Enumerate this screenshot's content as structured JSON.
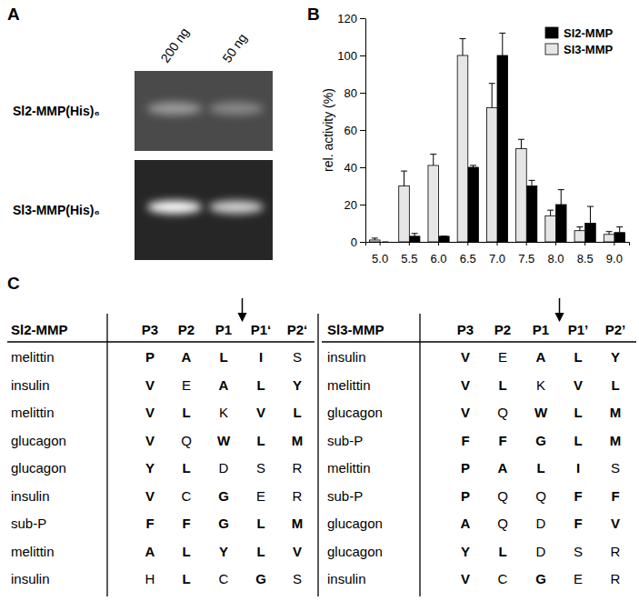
{
  "panel_labels": [
    "A",
    "B",
    "C"
  ],
  "gel": {
    "lanes": [
      "200 ng",
      "50 ng"
    ],
    "rows": [
      {
        "label": "Sl2-MMP(His)₆",
        "band_intensity": [
          0.45,
          0.35
        ]
      },
      {
        "label": "Sl3-MMP(His)₆",
        "band_intensity": [
          1.0,
          0.8
        ]
      }
    ]
  },
  "chart_data": {
    "type": "bar",
    "y_label": "rel. activity (%)",
    "categories": [
      "5.0",
      "5.5",
      "6.0",
      "6.5",
      "7.0",
      "7.5",
      "8.0",
      "8.5",
      "9.0"
    ],
    "series": [
      {
        "name": "Sl2-MMP",
        "color": "#000000",
        "values": [
          0,
          3,
          3,
          40,
          100,
          30,
          20,
          10,
          5
        ],
        "errors": [
          0,
          1.5,
          0,
          1,
          12,
          3,
          8,
          9,
          3
        ]
      },
      {
        "name": "Sl3-MMP",
        "color": "#e6e6e6",
        "values": [
          1,
          30,
          41,
          100,
          72,
          50,
          14,
          6,
          4
        ],
        "errors": [
          1,
          8,
          6,
          9,
          13,
          5,
          3,
          2,
          1.5
        ]
      }
    ],
    "ylim": [
      0,
      120
    ],
    "yticks": [
      0,
      20,
      40,
      60,
      80,
      100,
      120
    ],
    "legend": "top-right"
  },
  "tables": [
    {
      "header": [
        "Sl2-MMP",
        "P3",
        "P2",
        "P1",
        "P1‘",
        "P2‘"
      ],
      "rows": [
        {
          "peptide": "melittin",
          "residues": [
            "P",
            "A",
            "L",
            "I",
            "S"
          ],
          "bold": [
            true,
            true,
            true,
            true,
            false
          ]
        },
        {
          "peptide": "insulin",
          "residues": [
            "V",
            "E",
            "A",
            "L",
            "Y"
          ],
          "bold": [
            true,
            false,
            true,
            true,
            true
          ]
        },
        {
          "peptide": "melittin",
          "residues": [
            "V",
            "L",
            "K",
            "V",
            "L"
          ],
          "bold": [
            true,
            true,
            false,
            true,
            true
          ]
        },
        {
          "peptide": "glucagon",
          "residues": [
            "V",
            "Q",
            "W",
            "L",
            "M"
          ],
          "bold": [
            true,
            false,
            true,
            true,
            true
          ]
        },
        {
          "peptide": "glucagon",
          "residues": [
            "Y",
            "L",
            "D",
            "S",
            "R"
          ],
          "bold": [
            true,
            true,
            false,
            false,
            false
          ]
        },
        {
          "peptide": "insulin",
          "residues": [
            "V",
            "C",
            "G",
            "E",
            "R"
          ],
          "bold": [
            true,
            false,
            true,
            false,
            false
          ]
        },
        {
          "peptide": "sub-P",
          "residues": [
            "F",
            "F",
            "G",
            "L",
            "M"
          ],
          "bold": [
            true,
            true,
            true,
            true,
            true
          ]
        },
        {
          "peptide": "melittin",
          "residues": [
            "A",
            "L",
            "Y",
            "L",
            "V"
          ],
          "bold": [
            true,
            true,
            true,
            true,
            true
          ]
        },
        {
          "peptide": "insulin",
          "residues": [
            "H",
            "L",
            "C",
            "G",
            "S"
          ],
          "bold": [
            false,
            true,
            false,
            true,
            false
          ]
        }
      ]
    },
    {
      "header": [
        "Sl3-MMP",
        "P3",
        "P2",
        "P1",
        "P1’",
        "P2’"
      ],
      "rows": [
        {
          "peptide": "insulin",
          "residues": [
            "V",
            "E",
            "A",
            "L",
            "Y"
          ],
          "bold": [
            true,
            false,
            true,
            true,
            true
          ]
        },
        {
          "peptide": "melittin",
          "residues": [
            "V",
            "L",
            "K",
            "V",
            "L"
          ],
          "bold": [
            true,
            true,
            false,
            true,
            true
          ]
        },
        {
          "peptide": "glucagon",
          "residues": [
            "V",
            "Q",
            "W",
            "L",
            "M"
          ],
          "bold": [
            true,
            false,
            true,
            true,
            true
          ]
        },
        {
          "peptide": "sub-P",
          "residues": [
            "F",
            "F",
            "G",
            "L",
            "M"
          ],
          "bold": [
            true,
            true,
            true,
            true,
            true
          ]
        },
        {
          "peptide": "melittin",
          "residues": [
            "P",
            "A",
            "L",
            "I",
            "S"
          ],
          "bold": [
            true,
            true,
            true,
            true,
            false
          ]
        },
        {
          "peptide": "sub-P",
          "residues": [
            "P",
            "Q",
            "Q",
            "F",
            "F"
          ],
          "bold": [
            true,
            false,
            false,
            true,
            true
          ]
        },
        {
          "peptide": "glucagon",
          "residues": [
            "A",
            "Q",
            "D",
            "F",
            "V"
          ],
          "bold": [
            true,
            false,
            false,
            true,
            true
          ]
        },
        {
          "peptide": "glucagon",
          "residues": [
            "Y",
            "L",
            "D",
            "S",
            "R"
          ],
          "bold": [
            true,
            true,
            false,
            false,
            false
          ]
        },
        {
          "peptide": "insulin",
          "residues": [
            "V",
            "C",
            "G",
            "E",
            "R"
          ],
          "bold": [
            true,
            false,
            true,
            false,
            false
          ]
        }
      ]
    }
  ]
}
